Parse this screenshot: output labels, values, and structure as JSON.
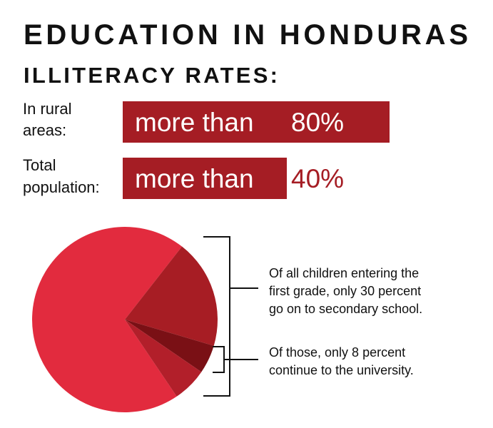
{
  "header": {
    "title": "EDUCATION IN HONDURAS",
    "subtitle": "ILLITERACY RATES:"
  },
  "rates": [
    {
      "label": [
        "In rural",
        "areas:"
      ],
      "prefix": "more than",
      "value": "80%"
    },
    {
      "label": [
        "Total",
        "population:"
      ],
      "prefix": "more than",
      "value": "40%"
    }
  ],
  "pie": {
    "type": "pie",
    "values": [
      70,
      19,
      5,
      6
    ],
    "colors": [
      "#e22b3e",
      "#a71d24",
      "#7a1015",
      "#b21f2a"
    ]
  },
  "notes": [
    [
      "Of all children entering the",
      "first grade, only 30 percent",
      "go on to secondary school."
    ],
    [
      "Of those, only 8 percent",
      "continue to the university."
    ]
  ]
}
